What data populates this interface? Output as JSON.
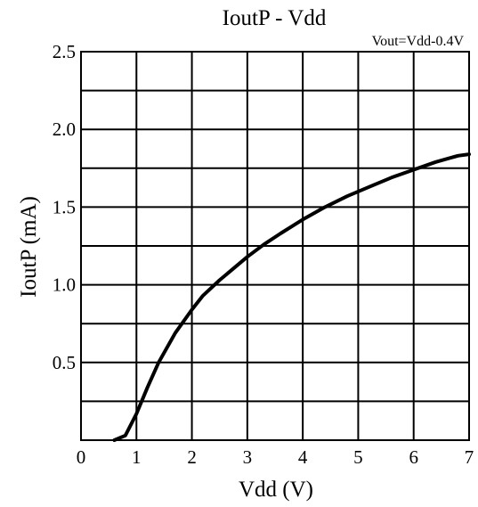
{
  "chart_data": {
    "type": "line",
    "title": "IoutP - Vdd",
    "annotation": "Vout=Vdd-0.4V",
    "xlabel": "Vdd (V)",
    "ylabel": "IoutP (mA)",
    "xlim": [
      0,
      7
    ],
    "ylim": [
      0,
      2.5
    ],
    "xticks": [
      "0",
      "1",
      "2",
      "3",
      "4",
      "5",
      "6",
      "7"
    ],
    "yticks": [
      "0.5",
      "1.0",
      "1.5",
      "2.0",
      "2.5"
    ],
    "grid": true,
    "series": [
      {
        "x": [
          0.6,
          0.8,
          1.0,
          1.2,
          1.4,
          1.7,
          2.0,
          2.2,
          2.5,
          2.8,
          3.0,
          3.3,
          3.6,
          4.0,
          4.4,
          4.8,
          5.2,
          5.6,
          6.0,
          6.4,
          6.8,
          7.0
        ],
        "values": [
          0.0,
          0.03,
          0.17,
          0.34,
          0.5,
          0.69,
          0.84,
          0.93,
          1.03,
          1.12,
          1.18,
          1.26,
          1.33,
          1.42,
          1.5,
          1.57,
          1.63,
          1.69,
          1.74,
          1.79,
          1.83,
          1.84
        ]
      }
    ],
    "colors": {
      "line": "#000000",
      "grid": "#000000",
      "background": "#ffffff"
    }
  }
}
